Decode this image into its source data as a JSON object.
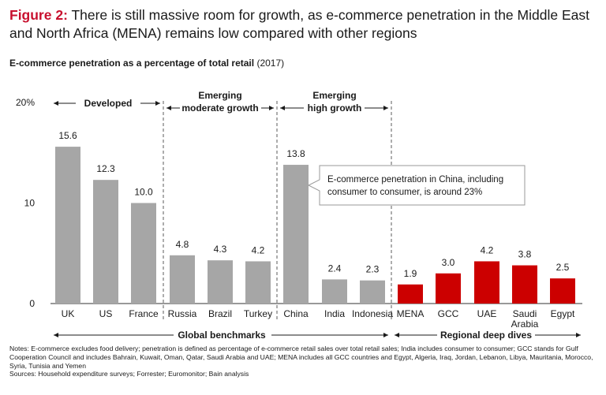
{
  "figure": {
    "label": "Figure 2:",
    "text": "There is still massive room for growth, as e-commerce penetration in the Middle East and North Africa (MENA) remains low compared with other regions"
  },
  "subtitle": {
    "main": "E-commerce penetration as a percentage of total retail",
    "year": "(2017)"
  },
  "colors": {
    "gray": "#a6a6a6",
    "red": "#cc0000",
    "accent": "#c8102e"
  },
  "chart_data": {
    "type": "bar",
    "categories": [
      "UK",
      "US",
      "France",
      "Russia",
      "Brazil",
      "Turkey",
      "China",
      "India",
      "Indonesia",
      "MENA",
      "GCC",
      "UAE",
      "Saudi Arabia",
      "Egypt"
    ],
    "values": [
      15.6,
      12.3,
      10.0,
      4.8,
      4.3,
      4.2,
      13.8,
      2.4,
      2.3,
      1.9,
      3.0,
      4.2,
      3.8,
      2.5
    ],
    "value_labels": [
      "15.6",
      "12.3",
      "10.0",
      "4.8",
      "4.3",
      "4.2",
      "13.8",
      "2.4",
      "2.3",
      "1.9",
      "3.0",
      "4.2",
      "3.8",
      "2.5"
    ],
    "colors": [
      "gray",
      "gray",
      "gray",
      "gray",
      "gray",
      "gray",
      "gray",
      "gray",
      "gray",
      "red",
      "red",
      "red",
      "red",
      "red"
    ],
    "ylim": [
      0,
      20
    ],
    "yticks": [
      0,
      10,
      20
    ],
    "ytick_labels": [
      "0",
      "10",
      "20%"
    ],
    "groups": [
      {
        "label": "Developed"
      },
      {
        "label_lines": [
          "Emerging",
          "moderate growth"
        ]
      },
      {
        "label_lines": [
          "Emerging",
          "high growth"
        ]
      }
    ],
    "bottom_groups": [
      {
        "label": "Global benchmarks"
      },
      {
        "label": "Regional deep dives"
      }
    ],
    "annotation": "E-commerce penetration in China, including consumer to consumer, is around 23%",
    "annotation_lines": [
      "E-commerce penetration in China, including",
      "consumer to consumer, is around 23%"
    ]
  },
  "notes": "Notes: E-commerce excludes food delivery; penetration is defined as percentage of e-commerce retail sales over total retail sales; India includes consumer to consumer; GCC stands for Gulf Cooperation Council and includes Bahrain, Kuwait, Oman, Qatar, Saudi Arabia and UAE; MENA includes all GCC countries and Egypt, Algeria, Iraq, Jordan, Lebanon, Libya, Mauritania, Morocco, Syria, Tunisia and Yemen",
  "sources": "Sources: Household expenditure surveys; Forrester; Euromonitor; Bain analysis"
}
